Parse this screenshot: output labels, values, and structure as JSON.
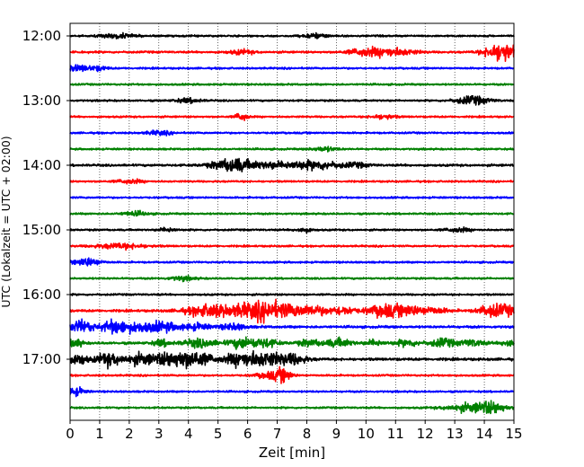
{
  "chart_data": {
    "type": "line",
    "title": "",
    "xlabel": "Zeit  [min]",
    "ylabel": "UTC (Lokalzeit = UTC + 02:00)",
    "xlim": [
      0,
      15
    ],
    "x_ticks": [
      "0",
      "1",
      "2",
      "3",
      "4",
      "5",
      "6",
      "7",
      "8",
      "9",
      "10",
      "11",
      "12",
      "13",
      "14",
      "15"
    ],
    "y_ticks": [
      "12:00",
      "13:00",
      "14:00",
      "15:00",
      "16:00",
      "17:00"
    ],
    "grid": "vertical dotted lines at each minute",
    "legend": "none",
    "colors_cycle": [
      "#000000",
      "#ff0000",
      "#0000ff",
      "#008000"
    ],
    "traces": [
      {
        "start": "12:00",
        "color": "#000000",
        "amplitude": 1.0,
        "events": [
          [
            1.6,
            0.4,
            2
          ],
          [
            8.3,
            0.3,
            2
          ]
        ]
      },
      {
        "start": "12:15",
        "color": "#ff0000",
        "amplitude": 1.1,
        "events": [
          [
            5.8,
            0.3,
            2
          ],
          [
            10.0,
            0.4,
            4
          ],
          [
            10.8,
            0.3,
            3
          ],
          [
            11.3,
            0.4,
            2
          ],
          [
            14.6,
            0.4,
            9
          ]
        ]
      },
      {
        "start": "12:30",
        "color": "#0000ff",
        "amplitude": 1.0,
        "events": [
          [
            0.3,
            0.3,
            3
          ],
          [
            1.0,
            0.2,
            2
          ]
        ]
      },
      {
        "start": "12:45",
        "color": "#008000",
        "amplitude": 1.0,
        "events": []
      },
      {
        "start": "13:00",
        "color": "#000000",
        "amplitude": 1.0,
        "events": [
          [
            4.0,
            0.3,
            2
          ],
          [
            13.6,
            0.4,
            4
          ]
        ]
      },
      {
        "start": "13:15",
        "color": "#ff0000",
        "amplitude": 1.0,
        "events": [
          [
            5.8,
            0.15,
            4
          ],
          [
            10.6,
            0.3,
            2
          ]
        ]
      },
      {
        "start": "13:30",
        "color": "#0000ff",
        "amplitude": 1.0,
        "events": [
          [
            3.0,
            0.3,
            2
          ]
        ]
      },
      {
        "start": "13:45",
        "color": "#008000",
        "amplitude": 1.0,
        "events": [
          [
            8.6,
            0.3,
            2
          ]
        ]
      },
      {
        "start": "14:00",
        "color": "#000000",
        "amplitude": 1.2,
        "events": [
          [
            5.5,
            0.5,
            6
          ],
          [
            7.2,
            0.8,
            3
          ],
          [
            8.5,
            0.5,
            3
          ],
          [
            9.7,
            0.3,
            2
          ]
        ]
      },
      {
        "start": "14:15",
        "color": "#ff0000",
        "amplitude": 1.0,
        "events": [
          [
            2.0,
            0.3,
            2
          ]
        ]
      },
      {
        "start": "14:30",
        "color": "#0000ff",
        "amplitude": 1.0,
        "events": []
      },
      {
        "start": "14:45",
        "color": "#008000",
        "amplitude": 1.0,
        "events": [
          [
            2.2,
            0.3,
            2
          ]
        ]
      },
      {
        "start": "15:00",
        "color": "#000000",
        "amplitude": 1.0,
        "events": [
          [
            3.3,
            0.2,
            2
          ],
          [
            7.9,
            0.2,
            2
          ],
          [
            13.1,
            0.3,
            2
          ]
        ]
      },
      {
        "start": "15:15",
        "color": "#ff0000",
        "amplitude": 1.0,
        "events": [
          [
            1.7,
            0.6,
            2.5
          ]
        ]
      },
      {
        "start": "15:30",
        "color": "#0000ff",
        "amplitude": 1.0,
        "events": [
          [
            0.6,
            0.3,
            4
          ]
        ]
      },
      {
        "start": "15:45",
        "color": "#008000",
        "amplitude": 1.0,
        "events": [
          [
            3.8,
            0.3,
            2
          ]
        ]
      },
      {
        "start": "16:00",
        "color": "#000000",
        "amplitude": 1.0,
        "events": []
      },
      {
        "start": "16:15",
        "color": "#ff0000",
        "amplitude": 1.3,
        "events": [
          [
            4.8,
            0.6,
            6
          ],
          [
            6.0,
            0.4,
            5
          ],
          [
            6.7,
            0.4,
            7
          ],
          [
            7.5,
            0.4,
            5
          ],
          [
            8.3,
            0.3,
            4
          ],
          [
            9.2,
            0.3,
            4
          ],
          [
            10.6,
            0.4,
            6
          ],
          [
            11.4,
            0.3,
            4
          ],
          [
            12.2,
            0.4,
            3
          ],
          [
            14.2,
            0.3,
            5
          ],
          [
            14.8,
            0.3,
            4
          ]
        ]
      },
      {
        "start": "16:30",
        "color": "#0000ff",
        "amplitude": 1.3,
        "events": [
          [
            0.4,
            0.3,
            6
          ],
          [
            1.5,
            0.3,
            6
          ],
          [
            2.3,
            0.4,
            4
          ],
          [
            3.2,
            0.4,
            4
          ],
          [
            4.3,
            0.3,
            3
          ],
          [
            5.5,
            0.3,
            3
          ]
        ]
      },
      {
        "start": "16:45",
        "color": "#008000",
        "amplitude": 1.3,
        "events": [
          [
            0.2,
            0.15,
            4
          ],
          [
            3.1,
            0.2,
            3
          ],
          [
            4.4,
            0.4,
            4
          ],
          [
            5.8,
            0.3,
            5
          ],
          [
            6.6,
            0.3,
            4
          ],
          [
            8.1,
            0.3,
            3
          ],
          [
            9.1,
            0.3,
            4
          ],
          [
            10.3,
            0.2,
            3
          ],
          [
            11.4,
            0.3,
            3
          ],
          [
            12.6,
            0.3,
            4
          ],
          [
            13.6,
            0.3,
            3
          ],
          [
            14.9,
            0.2,
            4
          ]
        ]
      },
      {
        "start": "17:00",
        "color": "#000000",
        "amplitude": 1.4,
        "events": [
          [
            0.3,
            0.2,
            5
          ],
          [
            1.3,
            0.3,
            6
          ],
          [
            2.4,
            0.4,
            5
          ],
          [
            3.3,
            0.3,
            4
          ],
          [
            4.1,
            0.5,
            8
          ],
          [
            5.8,
            0.4,
            6
          ],
          [
            6.7,
            0.5,
            6
          ],
          [
            7.6,
            0.3,
            4
          ]
        ]
      },
      {
        "start": "17:15",
        "color": "#ff0000",
        "amplitude": 1.0,
        "events": [
          [
            6.7,
            0.3,
            3
          ],
          [
            7.2,
            0.2,
            6
          ]
        ]
      },
      {
        "start": "17:30",
        "color": "#0000ff",
        "amplitude": 1.0,
        "events": [
          [
            0.2,
            0.2,
            4
          ]
        ]
      },
      {
        "start": "17:45",
        "color": "#008000",
        "amplitude": 1.0,
        "events": [
          [
            13.6,
            0.6,
            4
          ],
          [
            14.3,
            0.3,
            4
          ]
        ]
      }
    ]
  }
}
